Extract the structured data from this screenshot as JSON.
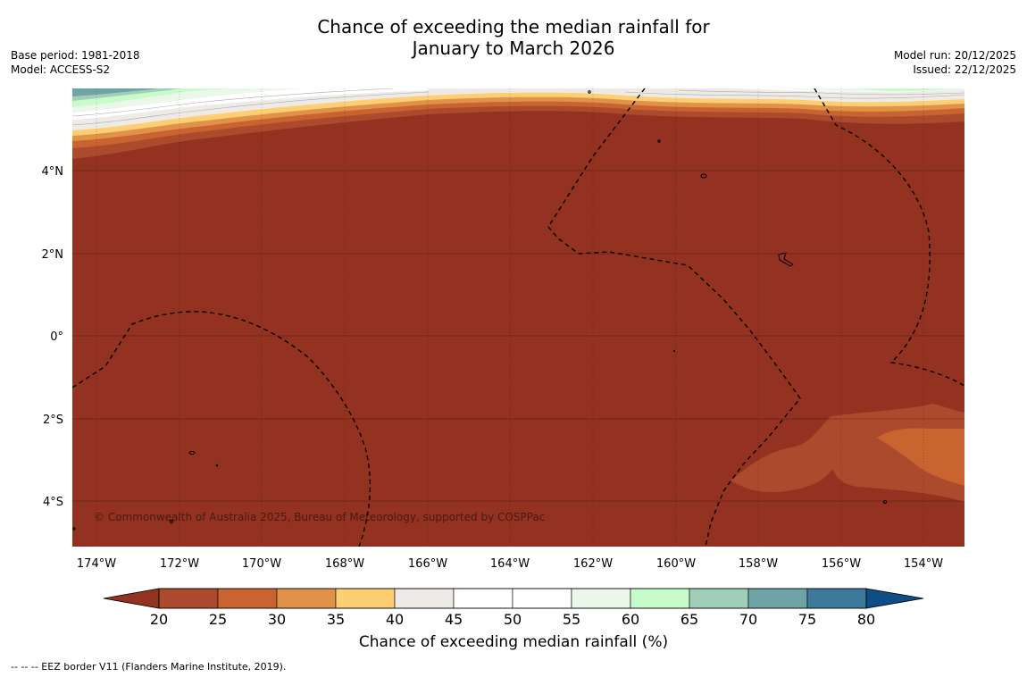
{
  "title": {
    "line1": "Chance of exceeding the median rainfall for",
    "line2": "January to March 2026"
  },
  "meta_left": {
    "base_period": "Base period: 1981-2018",
    "model": "Model: ACCESS-S2"
  },
  "meta_right": {
    "model_run": "Model run: 20/12/2025",
    "issued": "Issued: 22/12/2025"
  },
  "map": {
    "lat_labels": [
      {
        "text": "4°N",
        "value": 4
      },
      {
        "text": "2°N",
        "value": 2
      },
      {
        "text": "0°",
        "value": 0
      },
      {
        "text": "2°S",
        "value": -2
      },
      {
        "text": "4°S",
        "value": -4
      }
    ],
    "lon_labels": [
      {
        "text": "174°W",
        "value": -174
      },
      {
        "text": "172°W",
        "value": -172
      },
      {
        "text": "170°W",
        "value": -170
      },
      {
        "text": "168°W",
        "value": -168
      },
      {
        "text": "166°W",
        "value": -166
      },
      {
        "text": "164°W",
        "value": -164
      },
      {
        "text": "162°W",
        "value": -162
      },
      {
        "text": "160°W",
        "value": -160
      },
      {
        "text": "158°W",
        "value": -158
      },
      {
        "text": "156°W",
        "value": -156
      },
      {
        "text": "154°W",
        "value": -154
      }
    ],
    "lon_range": [
      -174.6,
      -153.1
    ],
    "lat_range": [
      -5.2,
      5.9
    ],
    "copyright": "© Commonwealth of Australia 2025, Bureau of Meteorology, supported by COSPPac",
    "dominant_category": "below 20%"
  },
  "colorbar": {
    "ticks": [
      "20",
      "25",
      "30",
      "35",
      "40",
      "45",
      "50",
      "55",
      "60",
      "65",
      "70",
      "75",
      "80"
    ],
    "colors": [
      "#ab4a2c",
      "#c9632f",
      "#e0924a",
      "#fdce72",
      "#eeebe6",
      "#ffffff",
      "#ffffff",
      "#eaf7e9",
      "#c7fbc9",
      "#9fcfb8",
      "#6fa4a6",
      "#3c7a9c"
    ],
    "under_color": "#933220",
    "over_color": "#0e4d86",
    "label": "Chance of exceeding median rainfall (%)"
  },
  "footnote": "--  --  -- EEZ border V11 (Flanders Marine Institute, 2019)."
}
